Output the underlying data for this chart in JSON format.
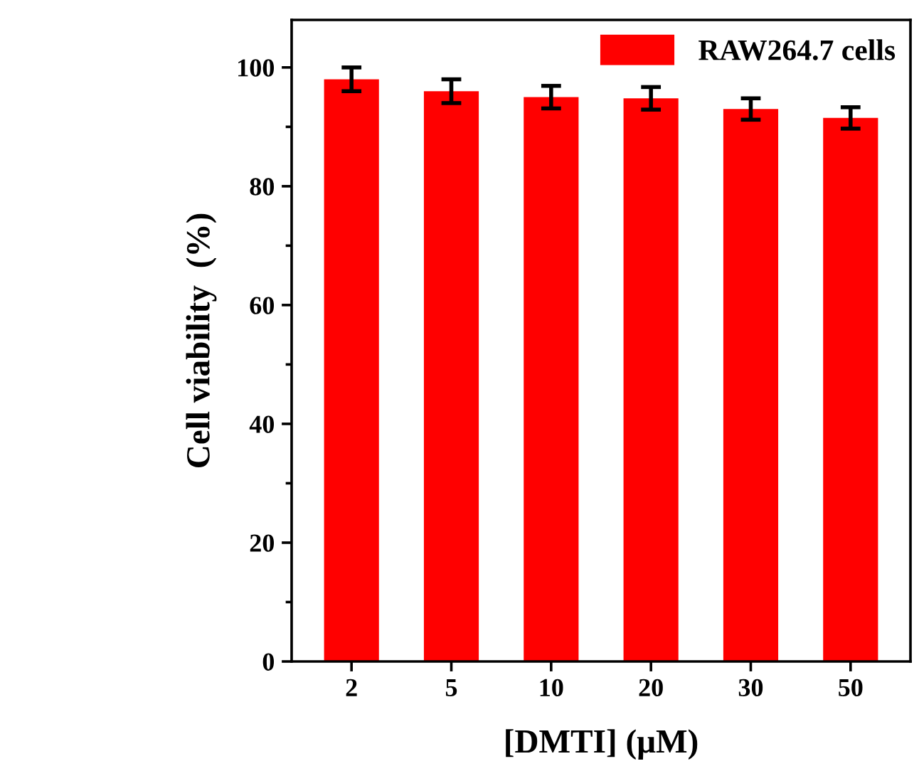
{
  "chart_data": {
    "type": "bar",
    "xlabel": "[DMTI] (μM)",
    "ylabel": "Cell viability  (%)",
    "categories": [
      "2",
      "5",
      "10",
      "20",
      "30",
      "50"
    ],
    "series": [
      {
        "name": "RAW264.7 cells",
        "color": "#ff0000",
        "values": [
          98,
          96,
          95,
          94.8,
          93,
          91.5
        ],
        "errors": [
          2,
          2,
          1.9,
          1.9,
          1.8,
          1.8
        ]
      }
    ],
    "ylim": [
      0,
      108
    ],
    "yticks": [
      0,
      20,
      40,
      60,
      80,
      100
    ],
    "legend": "top right",
    "grid": false
  }
}
